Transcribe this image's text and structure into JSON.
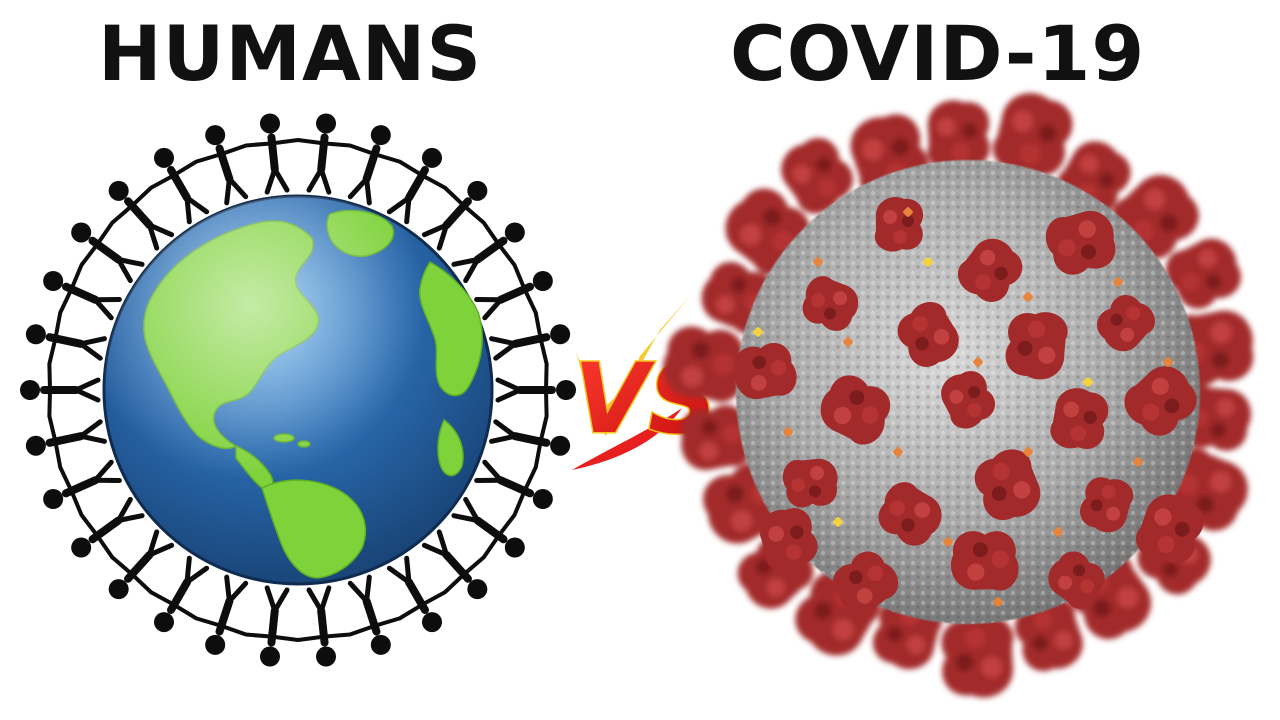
{
  "titles": {
    "left": "HUMANS",
    "right": "COVID-19",
    "vs": "VS"
  },
  "colors": {
    "title_text": "#111111",
    "ocean": "#1f5796",
    "land": "#7ed23a",
    "people": "#0d0d0d",
    "vs_red": "#e81f1f",
    "vs_gold": "#f7c41a",
    "virus_body": "#8a8a8a",
    "virus_spike": "#a32a2a",
    "virus_dot": "#e7843a"
  },
  "illustration": {
    "left": "earth-with-ring-of-holding-hands-people",
    "right": "coronavirus-particle"
  }
}
